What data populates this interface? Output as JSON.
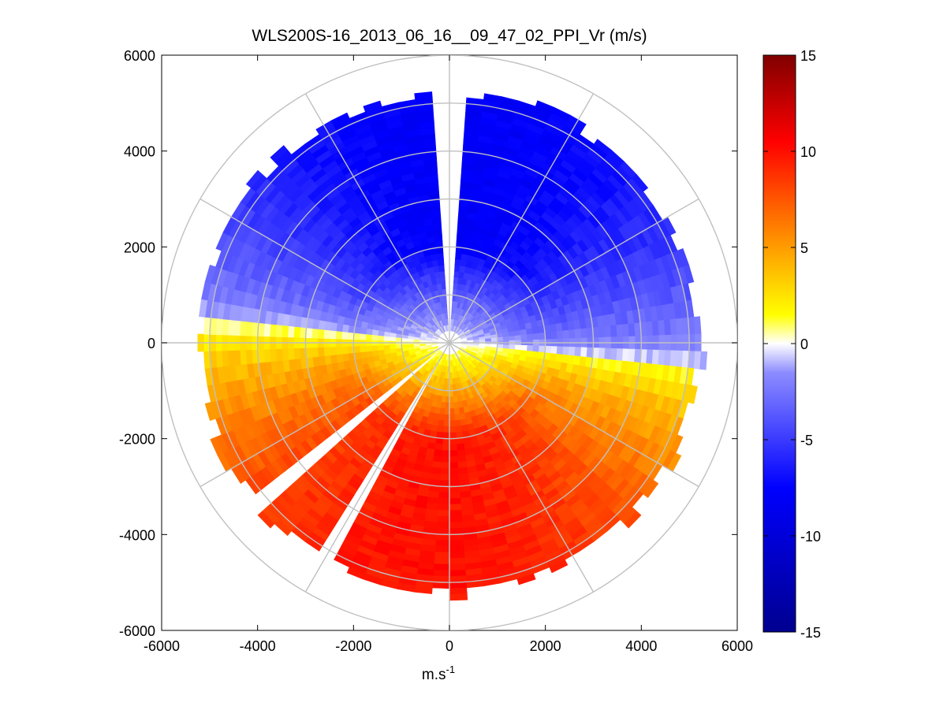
{
  "chart_data": {
    "type": "heatmap",
    "subtype": "polar-ppi",
    "title": "WLS200S-16_2013_06_16__09_47_02_PPI_Vr (m/s)",
    "xlabel": "m.s",
    "xlabel_superscript": "-1",
    "ylabel": "",
    "xlim": [
      -6000,
      6000
    ],
    "ylim": [
      -6000,
      6000
    ],
    "x_ticks": [
      "-6000",
      "-4000",
      "-2000",
      "0",
      "2000",
      "4000",
      "6000"
    ],
    "y_ticks": [
      "6000",
      "4000",
      "2000",
      "0",
      "-2000",
      "-4000",
      "-6000"
    ],
    "range_rings": [
      1000,
      2000,
      3000,
      4000,
      5000,
      6000
    ],
    "spoke_angles_deg": [
      0,
      30,
      60,
      90,
      120,
      150,
      180,
      210,
      240,
      270,
      300,
      330
    ],
    "grid": true,
    "colorbar": {
      "min": -15,
      "max": 15,
      "ticks": [
        "15",
        "10",
        "5",
        "0",
        "-5",
        "-10",
        "-15"
      ],
      "colormap": "blue-white-red",
      "colors": [
        "#00008f",
        "#0000ff",
        "#ffffff",
        "#ffff00",
        "#ff8000",
        "#ff0000",
        "#800000"
      ]
    },
    "velocity_field": {
      "description_free": true,
      "zero_line_direction_deg": 95,
      "max_range_m": 5000,
      "approach_velocity_ms": -8,
      "recede_velocity_ms": 10,
      "data_gaps_azimuth_deg": [
        0,
        210,
        230
      ]
    }
  }
}
